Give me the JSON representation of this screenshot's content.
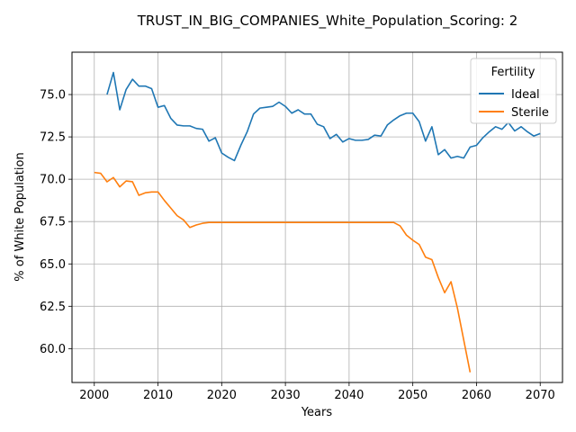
{
  "chart_data": {
    "type": "line",
    "title": "TRUST_IN_BIG_COMPANIES_White_Population_Scoring: 2",
    "xlabel": "Years",
    "ylabel": "% of White Population",
    "xlim": [
      1996.5,
      2073.5
    ],
    "ylim": [
      58.0,
      77.5
    ],
    "xticks": [
      2000,
      2010,
      2020,
      2030,
      2040,
      2050,
      2060,
      2070
    ],
    "yticks": [
      60.0,
      62.5,
      65.0,
      67.5,
      70.0,
      72.5,
      75.0
    ],
    "ytick_labels": [
      "60.0",
      "62.5",
      "65.0",
      "67.5",
      "70.0",
      "72.5",
      "75.0"
    ],
    "grid": true,
    "legend": {
      "title": "Fertility",
      "placement": "top-right"
    },
    "series": [
      {
        "name": "Ideal",
        "color": "#1f77b4",
        "x": [
          2002,
          2003,
          2004,
          2005,
          2006,
          2007,
          2008,
          2009,
          2010,
          2011,
          2012,
          2013,
          2014,
          2015,
          2016,
          2017,
          2018,
          2019,
          2020,
          2021,
          2022,
          2023,
          2024,
          2025,
          2026,
          2027,
          2028,
          2029,
          2030,
          2031,
          2032,
          2033,
          2034,
          2035,
          2036,
          2037,
          2038,
          2039,
          2040,
          2041,
          2042,
          2043,
          2044,
          2045,
          2046,
          2047,
          2048,
          2049,
          2050,
          2051,
          2052,
          2053,
          2054,
          2055,
          2056,
          2057,
          2058,
          2059,
          2060,
          2061,
          2062,
          2063,
          2064,
          2065,
          2066,
          2067,
          2068,
          2069,
          2070
        ],
        "y": [
          75.0,
          76.3,
          74.1,
          75.3,
          75.9,
          75.5,
          75.5,
          75.35,
          74.25,
          74.35,
          73.6,
          73.2,
          73.15,
          73.15,
          73.0,
          72.95,
          72.25,
          72.45,
          71.55,
          71.3,
          71.1,
          72.0,
          72.8,
          73.85,
          74.2,
          74.25,
          74.3,
          74.55,
          74.3,
          73.9,
          74.1,
          73.85,
          73.85,
          73.25,
          73.1,
          72.4,
          72.65,
          72.2,
          72.4,
          72.3,
          72.3,
          72.35,
          72.6,
          72.55,
          73.2,
          73.5,
          73.75,
          73.9,
          73.9,
          73.4,
          72.25,
          73.1,
          71.45,
          71.75,
          71.25,
          71.35,
          71.25,
          71.9,
          72.0,
          72.45,
          72.8,
          73.1,
          72.95,
          73.35,
          72.85,
          73.1,
          72.8,
          72.55,
          72.7
        ]
      },
      {
        "name": "Sterile",
        "color": "#ff7f0e",
        "x": [
          2000,
          2001,
          2002,
          2003,
          2004,
          2005,
          2006,
          2007,
          2008,
          2009,
          2010,
          2011,
          2012,
          2013,
          2014,
          2015,
          2016,
          2017,
          2018,
          2019,
          2020,
          2021,
          2022,
          2023,
          2024,
          2025,
          2026,
          2027,
          2028,
          2029,
          2030,
          2031,
          2032,
          2033,
          2034,
          2035,
          2036,
          2037,
          2038,
          2039,
          2040,
          2041,
          2042,
          2043,
          2044,
          2045,
          2046,
          2047,
          2048,
          2049,
          2050,
          2051,
          2052,
          2053,
          2054,
          2055,
          2056,
          2057,
          2058,
          2059
        ],
        "y": [
          70.4,
          70.35,
          69.85,
          70.1,
          69.55,
          69.9,
          69.85,
          69.05,
          69.2,
          69.25,
          69.25,
          68.75,
          68.3,
          67.85,
          67.6,
          67.15,
          67.3,
          67.4,
          67.45,
          67.45,
          67.45,
          67.45,
          67.45,
          67.45,
          67.45,
          67.45,
          67.45,
          67.45,
          67.45,
          67.45,
          67.45,
          67.45,
          67.45,
          67.45,
          67.45,
          67.45,
          67.45,
          67.45,
          67.45,
          67.45,
          67.45,
          67.45,
          67.45,
          67.45,
          67.45,
          67.45,
          67.45,
          67.45,
          67.25,
          66.7,
          66.4,
          66.15,
          65.4,
          65.25,
          64.2,
          63.3,
          63.95,
          62.4,
          60.5,
          58.6
        ]
      }
    ]
  }
}
